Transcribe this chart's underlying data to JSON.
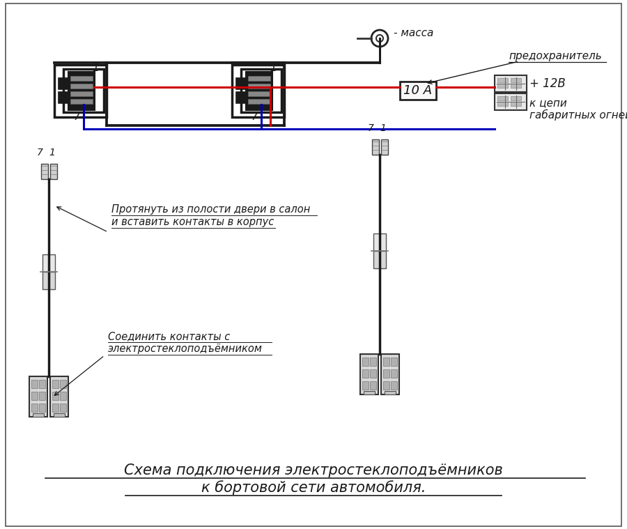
{
  "bg_color": "#ffffff",
  "title_line1": "Схема подключения электростеклоподъёмников",
  "title_line2": "к бортовой сети автомобиля.",
  "title_fontsize": 15,
  "wire_black": "#1a1a1a",
  "wire_red": "#cc0000",
  "wire_blue": "#0000bb",
  "annotation1_line1": "Протянуть из полости двери в салон",
  "annotation1_line2": "и вставить контакты в корпус",
  "annotation2_line1": "Соединить контакты с",
  "annotation2_line2": "электростеклоподъёмником",
  "label_massa": "- масса",
  "label_predohranitel": "предохранитель",
  "label_10A": "10 А",
  "label_12v": "+ 12В",
  "label_gabarity1": "к цепи",
  "label_gabarity2": "габаритных огней"
}
